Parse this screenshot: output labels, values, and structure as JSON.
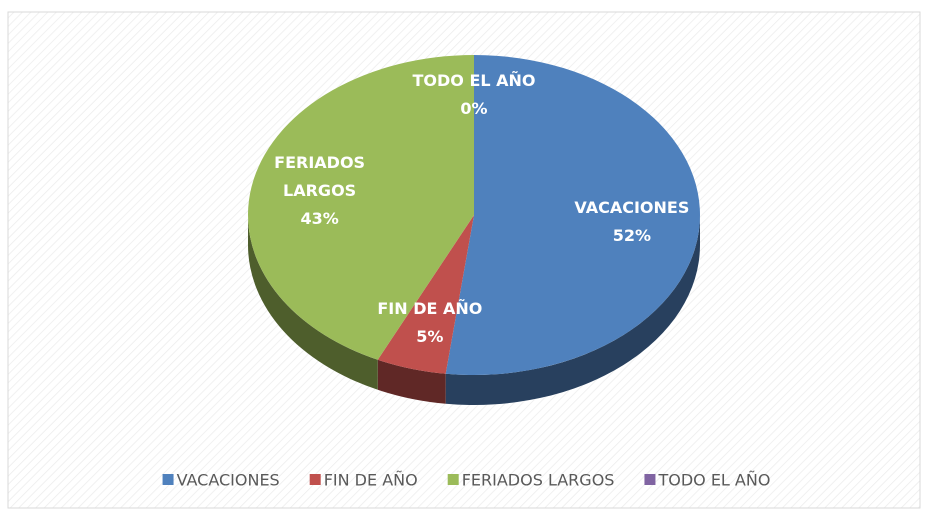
{
  "chart_data": {
    "type": "pie",
    "categories": [
      "VACACIONES",
      "FIN DE AÑO",
      "FERIADOS LARGOS",
      "TODO EL AÑO"
    ],
    "values": [
      52,
      5,
      43,
      0
    ],
    "value_labels": [
      "52%",
      "5%",
      "43%",
      "0%"
    ],
    "colors": [
      "#4f81bd",
      "#c0504d",
      "#9bbb59",
      "#8064a2"
    ],
    "legend": "bottom"
  }
}
